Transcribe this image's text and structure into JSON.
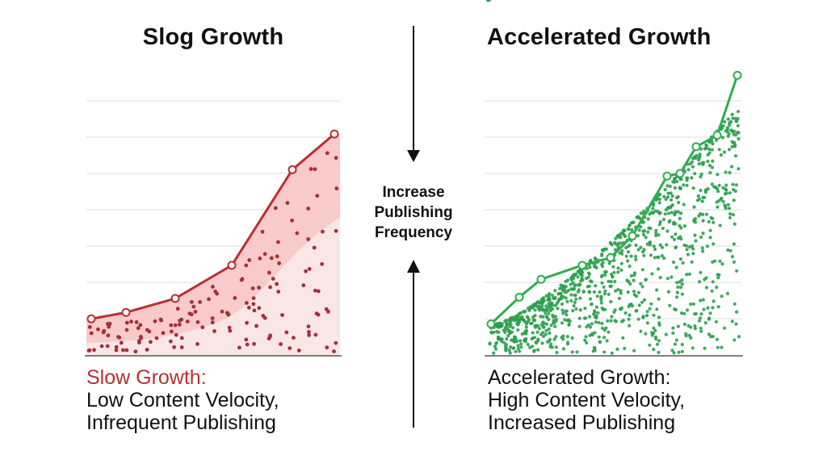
{
  "left_panel": {
    "title": "Slog Growth",
    "caption_heading": "Slow Growth:",
    "caption_line1": "Low Content Velocity,",
    "caption_line2": "Infrequent Publishing",
    "color_line": "#b8302f",
    "color_fill": "#f8c4c4",
    "color_fill_light": "#fbe6e6",
    "color_dots": "#a3303a"
  },
  "center": {
    "line1": "Increase",
    "line2": "Publishing",
    "line3": "Frequency",
    "arrow_down_icon": "arrow-down",
    "arrow_up_icon": "arrow-up"
  },
  "right_panel": {
    "title": "Accelerated Growth",
    "caption_heading": "Accelerated Growth:",
    "caption_line1": "High Content Velocity,",
    "caption_line2": "Increased Publishing",
    "color_line": "#2fae4e",
    "color_dots": "#2e9e4f"
  },
  "chart_data": [
    {
      "type": "line",
      "title": "Slog Growth",
      "subtitle": "Slow Growth: Low Content Velocity, Infrequent Publishing",
      "xlabel": "",
      "ylabel": "",
      "grid": true,
      "axis_ticks": "none",
      "series": [
        {
          "name": "Slow Growth",
          "x": [
            0,
            1,
            2,
            3,
            4,
            5
          ],
          "values": [
            14.5,
            17,
            22.5,
            35.5,
            73,
            87
          ]
        }
      ],
      "ylim": [
        0,
        100
      ],
      "annotations": "filled area under line with scattered dots (sparse)"
    },
    {
      "type": "line",
      "title": "Accelerated Growth",
      "subtitle": "Accelerated Growth: High Content Velocity, Increased Publishing",
      "xlabel": "",
      "ylabel": "",
      "grid": true,
      "axis_ticks": "none",
      "series": [
        {
          "name": "Accelerated Growth",
          "x": [
            0,
            1,
            2,
            3,
            4,
            5,
            6,
            7,
            8,
            9,
            10
          ],
          "values": [
            12.5,
            23,
            30,
            35.5,
            38.5,
            47,
            70.5,
            71.5,
            82,
            86.5,
            110
          ]
        }
      ],
      "ylim": [
        0,
        110
      ],
      "annotations": "dense scatter of dots beneath line"
    }
  ],
  "center_annotation": "Increase Publishing Frequency"
}
